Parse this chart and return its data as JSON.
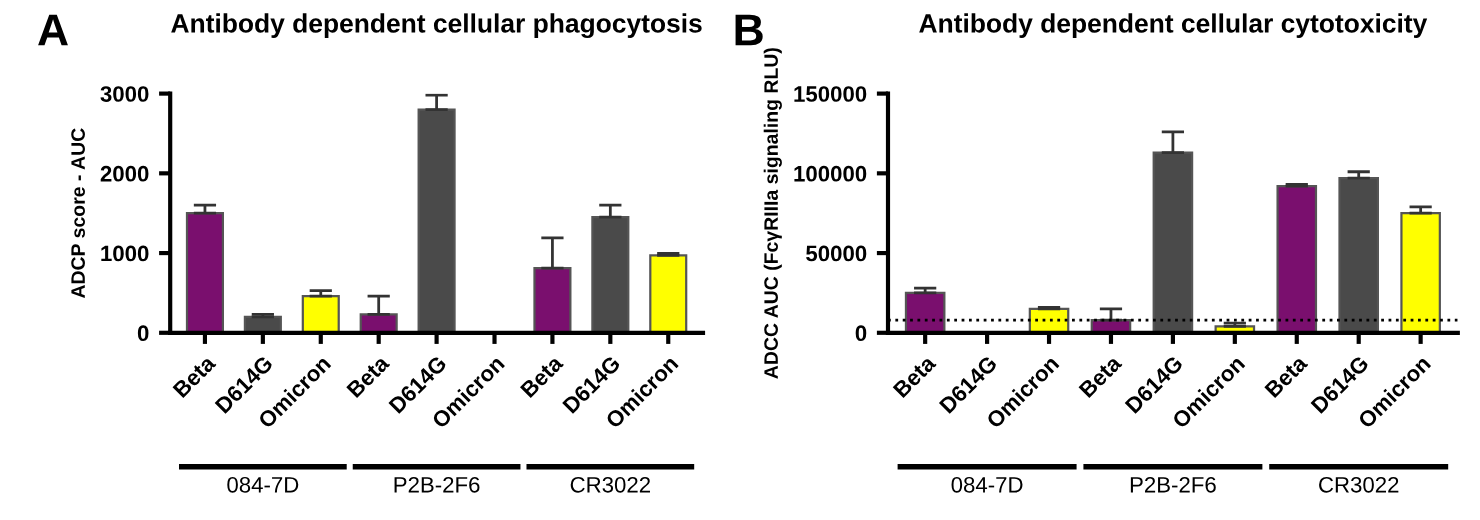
{
  "chart_data": [
    {
      "type": "bar",
      "title": "Antibody dependent cellular phagocytosis",
      "ylabel": "ADCP score - AUC",
      "categories": [
        "Beta",
        "D614G",
        "Omicron",
        "Beta",
        "D614G",
        "Omicron",
        "Beta",
        "D614G",
        "Omicron"
      ],
      "values": [
        1500,
        200,
        460,
        230,
        2800,
        null,
        810,
        1450,
        970
      ],
      "colors": [
        "#7a0f6e",
        "#4a4a4a",
        "#ffff00",
        "#7a0f6e",
        "#4a4a4a",
        "#ffff00",
        "#7a0f6e",
        "#4a4a4a",
        "#ffff00"
      ],
      "errors": [
        [
          1500,
          1600
        ],
        [
          200,
          230
        ],
        [
          460,
          530
        ],
        [
          230,
          460
        ],
        [
          2800,
          2980
        ],
        null,
        [
          810,
          1190
        ],
        [
          1450,
          1600
        ],
        [
          970,
          995
        ]
      ],
      "ylim": [
        0,
        3000
      ],
      "yticks": [
        0,
        1000,
        2000,
        3000
      ],
      "grid": false,
      "annotations": [
        "A",
        "084-7D",
        "P2B-2F6",
        "CR3022"
      ]
    },
    {
      "type": "bar",
      "title": "Antibody dependent cellular cytotoxicity",
      "ylabel": "ADCC AUC (FcγRIIIa signaling RLU)",
      "categories": [
        "Beta",
        "D614G",
        "Omicron",
        "Beta",
        "D614G",
        "Omicron",
        "Beta",
        "D614G",
        "Omicron"
      ],
      "values": [
        25000,
        null,
        15000,
        8000,
        113000,
        4000,
        92000,
        97000,
        75000
      ],
      "colors": [
        "#7a0f6e",
        "#4a4a4a",
        "#ffff00",
        "#7a0f6e",
        "#4a4a4a",
        "#ffff00",
        "#7a0f6e",
        "#4a4a4a",
        "#ffff00"
      ],
      "errors": [
        [
          25000,
          28000
        ],
        null,
        [
          15000,
          16000
        ],
        [
          8000,
          15000
        ],
        [
          113000,
          126000
        ],
        [
          4000,
          6000
        ],
        [
          92000,
          93000
        ],
        [
          97000,
          101000
        ],
        [
          75000,
          79000
        ]
      ],
      "ylim": [
        0,
        150000
      ],
      "yticks": [
        0,
        50000,
        100000,
        150000
      ],
      "grid": false,
      "ref_lines": [
        {
          "axis": "y",
          "value": 8000,
          "line_style": "dotted",
          "color": "#000000"
        }
      ],
      "annotations": [
        "B",
        "084-7D",
        "P2B-2F6",
        "CR3022"
      ]
    }
  ]
}
